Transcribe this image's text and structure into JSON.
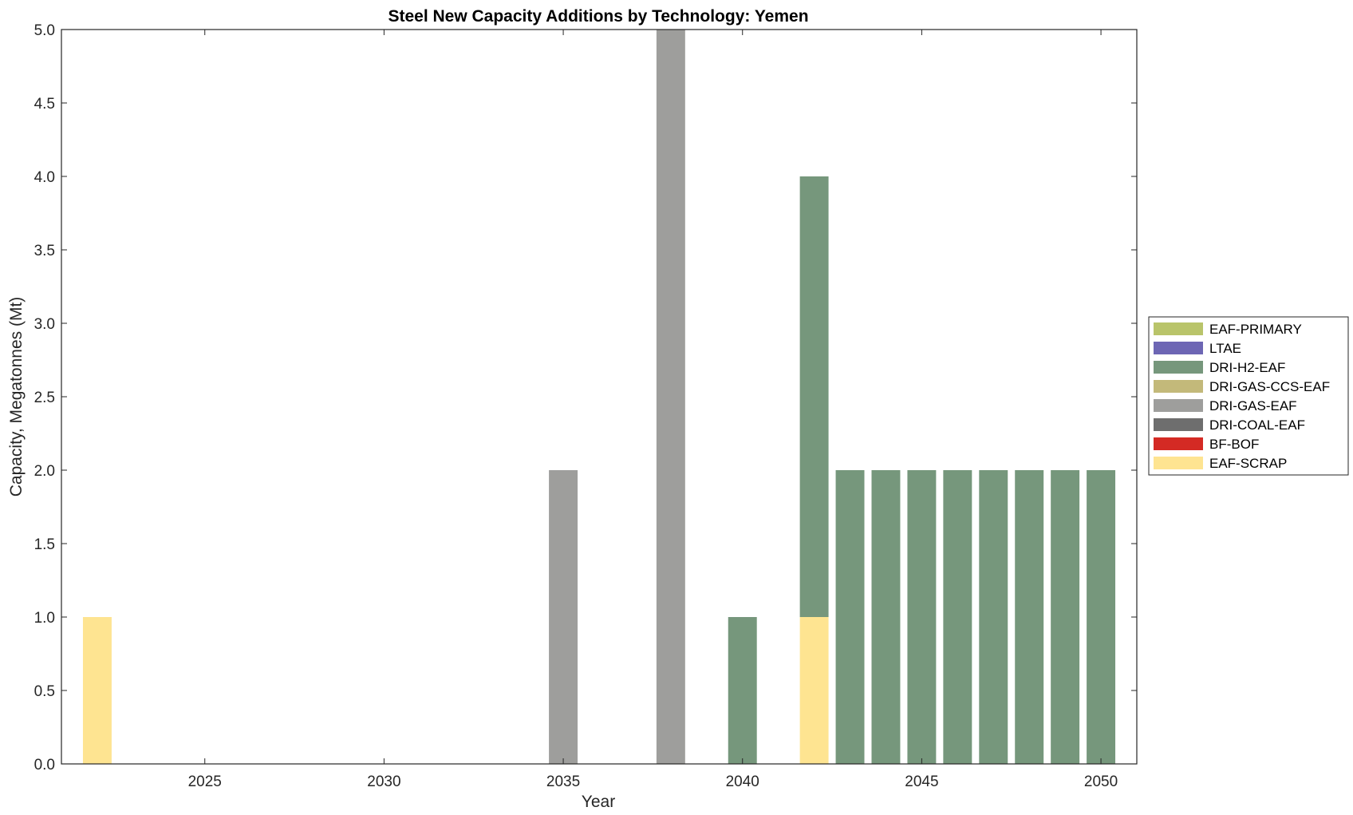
{
  "chart_data": {
    "type": "bar",
    "stacked": true,
    "title": "Steel New Capacity Additions by Technology: Yemen",
    "xlabel": "Year",
    "ylabel": "Capacity, Megatonnes (Mt)",
    "xlim": [
      2021,
      2051
    ],
    "ylim": [
      0,
      5
    ],
    "xticks": [
      2025,
      2030,
      2035,
      2040,
      2045,
      2050
    ],
    "yticks": [
      0.0,
      0.5,
      1.0,
      1.5,
      2.0,
      2.5,
      3.0,
      3.5,
      4.0,
      4.5,
      5.0
    ],
    "ytick_labels": [
      "0.0",
      "0.5",
      "1.0",
      "1.5",
      "2.0",
      "2.5",
      "3.0",
      "3.5",
      "4.0",
      "4.5",
      "5.0"
    ],
    "grid": false,
    "legend_position": "right",
    "x": [
      2022,
      2035,
      2038,
      2040,
      2042,
      2043,
      2044,
      2045,
      2046,
      2047,
      2048,
      2049,
      2050
    ],
    "series": [
      {
        "name": "EAF-SCRAP",
        "color": "#fee491",
        "values": [
          1,
          0,
          0,
          0,
          1,
          0,
          0,
          0,
          0,
          0,
          0,
          0,
          0
        ]
      },
      {
        "name": "BF-BOF",
        "color": "#d42a24",
        "values": [
          0,
          0,
          0,
          0,
          0,
          0,
          0,
          0,
          0,
          0,
          0,
          0,
          0
        ]
      },
      {
        "name": "DRI-COAL-EAF",
        "color": "#6e6e6e",
        "values": [
          0,
          0,
          0,
          0,
          0,
          0,
          0,
          0,
          0,
          0,
          0,
          0,
          0
        ]
      },
      {
        "name": "DRI-GAS-EAF",
        "color": "#9e9e9c",
        "values": [
          0,
          2,
          5,
          0,
          0,
          0,
          0,
          0,
          0,
          0,
          0,
          0,
          0
        ]
      },
      {
        "name": "DRI-GAS-CCS-EAF",
        "color": "#c3b97a",
        "values": [
          0,
          0,
          0,
          0,
          0,
          0,
          0,
          0,
          0,
          0,
          0,
          0,
          0
        ]
      },
      {
        "name": "DRI-H2-EAF",
        "color": "#76977c",
        "values": [
          0,
          0,
          0,
          1,
          3,
          2,
          2,
          2,
          2,
          2,
          2,
          2,
          2
        ]
      },
      {
        "name": "LTAE",
        "color": "#6d66b4",
        "values": [
          0,
          0,
          0,
          0,
          0,
          0,
          0,
          0,
          0,
          0,
          0,
          0,
          0
        ]
      },
      {
        "name": "EAF-PRIMARY",
        "color": "#b9c46a",
        "values": [
          0,
          0,
          0,
          0,
          0,
          0,
          0,
          0,
          0,
          0,
          0,
          0,
          0
        ]
      }
    ],
    "legend_order": [
      "EAF-PRIMARY",
      "LTAE",
      "DRI-H2-EAF",
      "DRI-GAS-CCS-EAF",
      "DRI-GAS-EAF",
      "DRI-COAL-EAF",
      "BF-BOF",
      "EAF-SCRAP"
    ]
  }
}
